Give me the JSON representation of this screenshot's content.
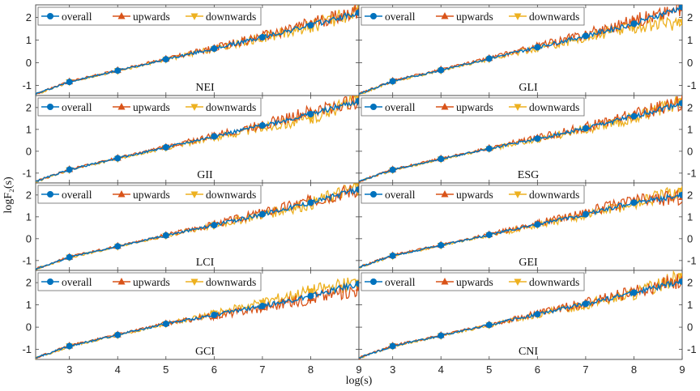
{
  "figure": {
    "xlabel": "log(s)",
    "ylabel": "logF₂(s)"
  },
  "chart_data": {
    "type": "line",
    "layout": "4 rows x 2 columns grid of panels",
    "xlim": [
      2.3,
      9
    ],
    "ylim": [
      -1.45,
      2.55
    ],
    "xticks": [
      "3",
      "4",
      "5",
      "6",
      "7",
      "8",
      "9"
    ],
    "yticks": [
      "-1",
      "0",
      "1",
      "2"
    ],
    "legend_position": "top-left",
    "series_styles": [
      {
        "name": "overall",
        "color": "#0072BD",
        "marker": "circle"
      },
      {
        "name": "upwards",
        "color": "#D95319",
        "marker": "triangle-up"
      },
      {
        "name": "downwards",
        "color": "#EDB120",
        "marker": "triangle-down"
      }
    ],
    "panels": [
      {
        "title": "NEI",
        "series": [
          {
            "name": "overall",
            "x": [
              2.3,
              3,
              4,
              5,
              6,
              7,
              8,
              9
            ],
            "y": [
              -1.38,
              -0.85,
              -0.35,
              0.15,
              0.62,
              1.12,
              1.65,
              2.2
            ]
          },
          {
            "name": "upwards",
            "x": [
              2.3,
              3,
              4,
              5,
              6,
              7,
              8,
              9
            ],
            "y": [
              -1.38,
              -0.83,
              -0.33,
              0.17,
              0.65,
              1.15,
              1.72,
              2.3
            ]
          },
          {
            "name": "downwards",
            "x": [
              2.3,
              3,
              4,
              5,
              6,
              7,
              8,
              9
            ],
            "y": [
              -1.4,
              -0.86,
              -0.37,
              0.13,
              0.6,
              1.1,
              1.6,
              2.3
            ]
          }
        ]
      },
      {
        "title": "GLI",
        "series": [
          {
            "name": "overall",
            "x": [
              2.3,
              3,
              4,
              5,
              6,
              7,
              8,
              9
            ],
            "y": [
              -1.38,
              -0.82,
              -0.33,
              0.18,
              0.68,
              1.18,
              1.72,
              2.45
            ]
          },
          {
            "name": "upwards",
            "x": [
              2.3,
              3,
              4,
              5,
              6,
              7,
              8,
              9
            ],
            "y": [
              -1.38,
              -0.8,
              -0.3,
              0.2,
              0.72,
              1.25,
              1.85,
              2.4
            ]
          },
          {
            "name": "downwards",
            "x": [
              2.3,
              3,
              4,
              5,
              6,
              7,
              8,
              9
            ],
            "y": [
              -1.4,
              -0.84,
              -0.35,
              0.15,
              0.64,
              1.12,
              1.6,
              1.8
            ]
          }
        ]
      },
      {
        "title": "GII",
        "series": [
          {
            "name": "overall",
            "x": [
              2.3,
              3,
              4,
              5,
              6,
              7,
              8,
              9
            ],
            "y": [
              -1.38,
              -0.84,
              -0.32,
              0.18,
              0.68,
              1.18,
              1.7,
              2.3
            ]
          },
          {
            "name": "upwards",
            "x": [
              2.3,
              3,
              4,
              5,
              6,
              7,
              8,
              9
            ],
            "y": [
              -1.38,
              -0.82,
              -0.3,
              0.2,
              0.72,
              1.22,
              1.8,
              2.35
            ]
          },
          {
            "name": "downwards",
            "x": [
              2.3,
              3,
              4,
              5,
              6,
              7,
              8,
              9
            ],
            "y": [
              -1.4,
              -0.86,
              -0.35,
              0.15,
              0.62,
              1.1,
              1.5,
              2.4
            ]
          }
        ]
      },
      {
        "title": "ESG",
        "series": [
          {
            "name": "overall",
            "x": [
              2.3,
              3,
              4,
              5,
              6,
              7,
              8,
              9
            ],
            "y": [
              -1.38,
              -0.85,
              -0.35,
              0.12,
              0.58,
              1.05,
              1.6,
              2.2
            ]
          },
          {
            "name": "upwards",
            "x": [
              2.3,
              3,
              4,
              5,
              6,
              7,
              8,
              9
            ],
            "y": [
              -1.38,
              -0.83,
              -0.33,
              0.15,
              0.62,
              1.1,
              1.68,
              2.25
            ]
          },
          {
            "name": "downwards",
            "x": [
              2.3,
              3,
              4,
              5,
              6,
              7,
              8,
              9
            ],
            "y": [
              -1.4,
              -0.87,
              -0.37,
              0.1,
              0.55,
              1.02,
              1.55,
              2.3
            ]
          }
        ]
      },
      {
        "title": "LCI",
        "series": [
          {
            "name": "overall",
            "x": [
              2.3,
              3,
              4,
              5,
              6,
              7,
              8,
              9
            ],
            "y": [
              -1.38,
              -0.85,
              -0.35,
              0.15,
              0.62,
              1.12,
              1.65,
              2.25
            ]
          },
          {
            "name": "upwards",
            "x": [
              2.3,
              3,
              4,
              5,
              6,
              7,
              8,
              9
            ],
            "y": [
              -1.38,
              -0.83,
              -0.33,
              0.17,
              0.66,
              1.18,
              1.72,
              2.3
            ]
          },
          {
            "name": "downwards",
            "x": [
              2.3,
              3,
              4,
              5,
              6,
              7,
              8,
              9
            ],
            "y": [
              -1.4,
              -0.86,
              -0.37,
              0.13,
              0.6,
              1.1,
              1.6,
              2.4
            ]
          }
        ]
      },
      {
        "title": "GEI",
        "series": [
          {
            "name": "overall",
            "x": [
              2.3,
              3,
              4,
              5,
              6,
              7,
              8,
              9
            ],
            "y": [
              -1.3,
              -0.78,
              -0.3,
              0.18,
              0.65,
              1.12,
              1.65,
              2.0
            ]
          },
          {
            "name": "upwards",
            "x": [
              2.3,
              3,
              4,
              5,
              6,
              7,
              8,
              9
            ],
            "y": [
              -1.3,
              -0.76,
              -0.28,
              0.2,
              0.7,
              1.2,
              1.75,
              1.9
            ]
          },
          {
            "name": "downwards",
            "x": [
              2.3,
              3,
              4,
              5,
              6,
              7,
              8,
              9
            ],
            "y": [
              -1.32,
              -0.8,
              -0.32,
              0.16,
              0.62,
              1.1,
              1.62,
              2.2
            ]
          }
        ]
      },
      {
        "title": "GCI",
        "series": [
          {
            "name": "overall",
            "x": [
              2.3,
              3,
              4,
              5,
              6,
              7,
              8,
              9
            ],
            "y": [
              -1.38,
              -0.85,
              -0.35,
              0.15,
              0.55,
              0.95,
              1.4,
              1.95
            ]
          },
          {
            "name": "upwards",
            "x": [
              2.3,
              3,
              4,
              5,
              6,
              7,
              8,
              9
            ],
            "y": [
              -1.38,
              -0.83,
              -0.33,
              0.17,
              0.5,
              0.9,
              1.3,
              1.75
            ]
          },
          {
            "name": "downwards",
            "x": [
              2.3,
              3,
              4,
              5,
              6,
              7,
              8,
              9
            ],
            "y": [
              -1.4,
              -0.86,
              -0.37,
              0.13,
              0.62,
              1.1,
              1.6,
              2.0
            ]
          }
        ]
      },
      {
        "title": "CNI",
        "series": [
          {
            "name": "overall",
            "x": [
              2.3,
              3,
              4,
              5,
              6,
              7,
              8,
              9
            ],
            "y": [
              -1.38,
              -0.85,
              -0.38,
              0.1,
              0.58,
              1.05,
              1.55,
              2.05
            ]
          },
          {
            "name": "upwards",
            "x": [
              2.3,
              3,
              4,
              5,
              6,
              7,
              8,
              9
            ],
            "y": [
              -1.38,
              -0.83,
              -0.36,
              0.12,
              0.62,
              1.1,
              1.6,
              2.15
            ]
          },
          {
            "name": "downwards",
            "x": [
              2.3,
              3,
              4,
              5,
              6,
              7,
              8,
              9
            ],
            "y": [
              -1.4,
              -0.86,
              -0.4,
              0.08,
              0.55,
              1.02,
              1.5,
              2.3
            ]
          }
        ]
      }
    ]
  }
}
